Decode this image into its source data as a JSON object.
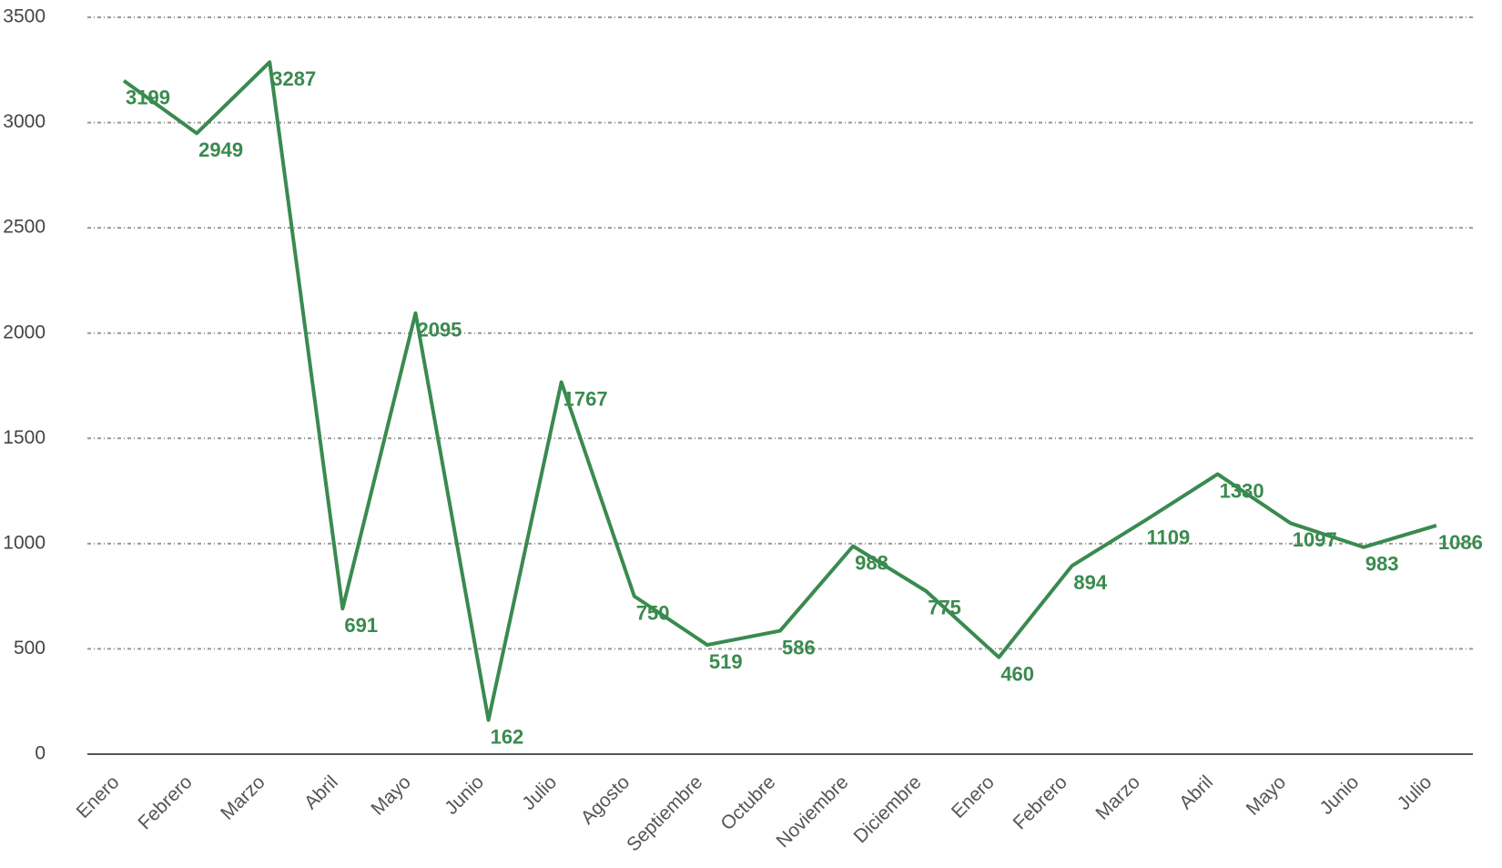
{
  "chart_data": {
    "type": "line",
    "categories": [
      "Enero",
      "Febrero",
      "Marzo",
      "Abril",
      "Mayo",
      "Junio",
      "Julio",
      "Agosto",
      "Septiembre",
      "Octubre",
      "Noviembre",
      "Diciembre",
      "Enero",
      "Febrero",
      "Marzo",
      "Abril",
      "Mayo",
      "Junio",
      "Julio"
    ],
    "series": [
      {
        "name": null,
        "color": "#3a8a4f",
        "values": [
          3199,
          2949,
          3287,
          691,
          2095,
          162,
          1767,
          750,
          519,
          586,
          988,
          775,
          460,
          894,
          1109,
          1330,
          1097,
          983,
          1086
        ]
      }
    ],
    "ylim": [
      0,
      3500
    ],
    "yticks": [
      0,
      500,
      1000,
      1500,
      2000,
      2500,
      3000,
      3500
    ],
    "grid": true
  }
}
